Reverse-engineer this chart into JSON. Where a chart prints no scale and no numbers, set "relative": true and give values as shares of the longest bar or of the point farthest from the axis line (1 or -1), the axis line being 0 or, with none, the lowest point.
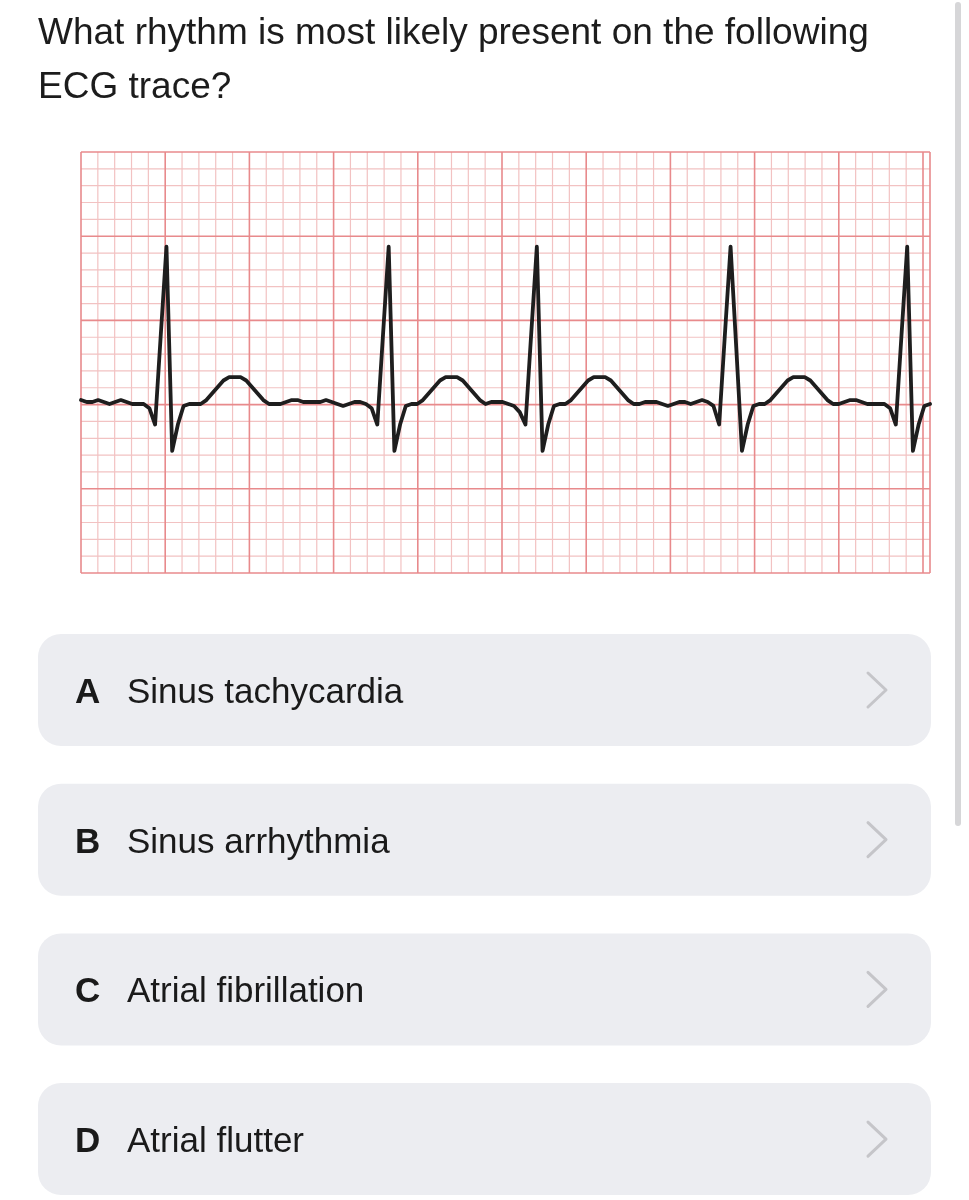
{
  "chart_data": {
    "type": "line",
    "title": "What rhythm is most likely present on the following ECG trace?",
    "categories": [
      null,
      null,
      null,
      null,
      null,
      null,
      null,
      null,
      null,
      null,
      null,
      null,
      null,
      null,
      null,
      null,
      null,
      null,
      null,
      null,
      null,
      null,
      null,
      null,
      null,
      null,
      null,
      null,
      null,
      null,
      null,
      null,
      null,
      null,
      null,
      null,
      null,
      null,
      null,
      null,
      null,
      null,
      null,
      null,
      null,
      null,
      null,
      null,
      null,
      null,
      null,
      null,
      null,
      null,
      null,
      null,
      null,
      null,
      null,
      null,
      null,
      null,
      null,
      null,
      null,
      null,
      null,
      null,
      null,
      null,
      null,
      null,
      null,
      null,
      null,
      null,
      null,
      null,
      null,
      null,
      null,
      null,
      null,
      null,
      null,
      null,
      null,
      null,
      null,
      null,
      null,
      null,
      null,
      null,
      null,
      null,
      null,
      null,
      null,
      null,
      null,
      null,
      null,
      null,
      null,
      null,
      null,
      null,
      null,
      null,
      null,
      null,
      null,
      null,
      null,
      null,
      null,
      null,
      null,
      null,
      null,
      null,
      null,
      null,
      null,
      null,
      null,
      null,
      null,
      null,
      null,
      null,
      null,
      null,
      null,
      null,
      null,
      null,
      null,
      null,
      null,
      null,
      null,
      null,
      null,
      null,
      null,
      null,
      null,
      null
    ],
    "values": [
      0.53,
      0.524,
      0.524,
      0.53,
      0.524,
      0.518,
      0.524,
      0.53,
      0.524,
      0.518,
      0.518,
      0.518,
      0.505,
      0.455,
      0.73,
      1,
      0.374,
      0.455,
      0.512,
      0.518,
      0.518,
      0.518,
      0.53,
      0.55,
      0.57,
      0.59,
      0.6,
      0.6,
      0.6,
      0.59,
      0.57,
      0.55,
      0.53,
      0.518,
      0.518,
      0.518,
      0.524,
      0.53,
      0.53,
      0.524,
      0.524,
      0.524,
      0.524,
      0.53,
      0.524,
      0.518,
      0.512,
      0.518,
      0.524,
      0.524,
      0.518,
      0.505,
      0.455,
      0.73,
      1,
      0.374,
      0.455,
      0.512,
      0.518,
      0.518,
      0.53,
      0.55,
      0.57,
      0.59,
      0.6,
      0.6,
      0.6,
      0.59,
      0.57,
      0.55,
      0.53,
      0.518,
      0.524,
      0.524,
      0.524,
      0.518,
      0.512,
      0.493,
      0.455,
      0.73,
      1,
      0.374,
      0.455,
      0.512,
      0.518,
      0.518,
      0.53,
      0.55,
      0.57,
      0.59,
      0.6,
      0.6,
      0.6,
      0.59,
      0.57,
      0.55,
      0.53,
      0.518,
      0.518,
      0.524,
      0.524,
      0.524,
      0.518,
      0.512,
      0.518,
      0.524,
      0.524,
      0.518,
      0.524,
      0.53,
      0.524,
      0.512,
      0.455,
      0.73,
      1,
      0.69,
      0.374,
      0.455,
      0.512,
      0.518,
      0.518,
      0.53,
      0.55,
      0.57,
      0.59,
      0.6,
      0.6,
      0.6,
      0.59,
      0.57,
      0.55,
      0.53,
      0.518,
      0.518,
      0.524,
      0.53,
      0.53,
      0.524,
      0.518,
      0.518,
      0.518,
      0.518,
      0.505,
      0.455,
      0.73,
      1,
      0.374,
      0.455,
      0.512,
      0.518
    ],
    "color": "#1e1e1e",
    "relative": true,
    "grid": true,
    "annotations": [
      "A",
      "Sinus tachycardia",
      "B",
      "Sinus arrhythmia",
      "C",
      "Atrial fibrillation",
      "D",
      "Atrial flutter"
    ]
  }
}
